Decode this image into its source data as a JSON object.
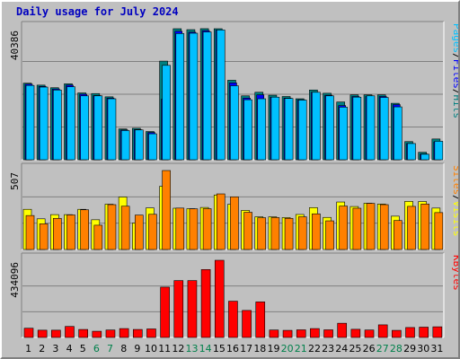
{
  "title": "Daily usage for July 2024",
  "colors": {
    "background": "#c0c0c0",
    "plot_bg": "#c0c0c0",
    "gridline": "#808080",
    "title": "#0000c0",
    "hits": "#008080",
    "files": "#0000ff",
    "pages": "#00c0ff",
    "visits": "#ffff00",
    "sites": "#ff8000",
    "kbytes": "#ff0000",
    "weekend_label": "#00804b",
    "weekday_label": "#000000"
  },
  "chart_data": [
    {
      "type": "bar",
      "panel": "pages-files-hits",
      "ylabel_parts": [
        "Pages",
        "/",
        "Files",
        "/",
        "Hits"
      ],
      "ylabel_colors": [
        "#00c0ff",
        "#000000",
        "#0000ff",
        "#000000",
        "#008080"
      ],
      "max_label": "40386",
      "ylim": [
        0,
        40386
      ],
      "series": [
        {
          "name": "Hits",
          "color": "#008080",
          "values": [
            23600,
            23000,
            22200,
            23400,
            20600,
            20400,
            19400,
            9500,
            9700,
            8700,
            30400,
            40386,
            40100,
            40400,
            40386,
            24500,
            19700,
            20800,
            19900,
            19500,
            18800,
            21500,
            20500,
            17800,
            20000,
            20000,
            20000,
            17400,
            5600,
            2300,
            6400
          ]
        },
        {
          "name": "Files",
          "color": "#0000ff",
          "values": [
            23300,
            22600,
            21800,
            23000,
            20200,
            19800,
            19000,
            9200,
            9300,
            8400,
            18700,
            39600,
            39300,
            39800,
            40000,
            23700,
            19000,
            20000,
            19300,
            19000,
            18500,
            20800,
            19900,
            16700,
            19500,
            19500,
            19500,
            17000,
            5000,
            1800,
            5500
          ]
        },
        {
          "name": "Pages",
          "color": "#00c0ff",
          "values": [
            22900,
            22400,
            21500,
            22500,
            19700,
            19700,
            18800,
            9000,
            9200,
            8000,
            29100,
            38900,
            39000,
            39400,
            40000,
            22800,
            18500,
            18800,
            19300,
            18900,
            18400,
            20800,
            19700,
            16200,
            19300,
            19700,
            19200,
            16300,
            5000,
            1700,
            5700
          ]
        }
      ]
    },
    {
      "type": "bar",
      "panel": "sites-visits",
      "ylabel_parts": [
        "Sites",
        "/",
        "Visits"
      ],
      "ylabel_colors": [
        "#ff8000",
        "#000000",
        "#ffff00"
      ],
      "max_label": "507",
      "ylim": [
        0,
        507
      ],
      "series": [
        {
          "name": "Visits",
          "color": "#ffff00",
          "values": [
            258,
            197,
            224,
            224,
            258,
            191,
            291,
            337,
            170,
            267,
            406,
            265,
            262,
            270,
            350,
            290,
            251,
            210,
            210,
            205,
            225,
            269,
            206,
            305,
            276,
            297,
            292,
            214,
            309,
            308,
            266
          ]
        },
        {
          "name": "Sites",
          "color": "#ff8000",
          "values": [
            218,
            165,
            200,
            222,
            255,
            156,
            288,
            278,
            221,
            226,
            507,
            266,
            261,
            262,
            357,
            338,
            239,
            204,
            205,
            200,
            210,
            229,
            184,
            279,
            265,
            296,
            288,
            186,
            277,
            292,
            237
          ]
        }
      ]
    },
    {
      "type": "bar",
      "panel": "kbytes",
      "ylabel_parts": [
        "KBytes"
      ],
      "ylabel_colors": [
        "#ff0000"
      ],
      "max_label": "434096",
      "ylim": [
        0,
        434096
      ],
      "series": [
        {
          "name": "KBytes",
          "color": "#ff0000",
          "values": [
            52000,
            41000,
            41000,
            62000,
            45000,
            35000,
            42000,
            50000,
            45000,
            48000,
            283000,
            320000,
            320000,
            382000,
            434096,
            204000,
            152000,
            200000,
            42000,
            40000,
            43000,
            50000,
            43000,
            80000,
            46000,
            42000,
            71000,
            40000,
            56000,
            58000,
            60000
          ]
        }
      ]
    }
  ],
  "x_labels": [
    {
      "label": "1",
      "weekend": false
    },
    {
      "label": "2",
      "weekend": false
    },
    {
      "label": "3",
      "weekend": false
    },
    {
      "label": "4",
      "weekend": false
    },
    {
      "label": "5",
      "weekend": false
    },
    {
      "label": "6",
      "weekend": true
    },
    {
      "label": "7",
      "weekend": true
    },
    {
      "label": "8",
      "weekend": false
    },
    {
      "label": "9",
      "weekend": false
    },
    {
      "label": "10",
      "weekend": false
    },
    {
      "label": "11",
      "weekend": false
    },
    {
      "label": "12",
      "weekend": false
    },
    {
      "label": "13",
      "weekend": true
    },
    {
      "label": "14",
      "weekend": true
    },
    {
      "label": "15",
      "weekend": false
    },
    {
      "label": "16",
      "weekend": false
    },
    {
      "label": "17",
      "weekend": false
    },
    {
      "label": "18",
      "weekend": false
    },
    {
      "label": "19",
      "weekend": false
    },
    {
      "label": "20",
      "weekend": true
    },
    {
      "label": "21",
      "weekend": true
    },
    {
      "label": "22",
      "weekend": false
    },
    {
      "label": "23",
      "weekend": false
    },
    {
      "label": "24",
      "weekend": false
    },
    {
      "label": "25",
      "weekend": false
    },
    {
      "label": "26",
      "weekend": false
    },
    {
      "label": "27",
      "weekend": true
    },
    {
      "label": "28",
      "weekend": true
    },
    {
      "label": "29",
      "weekend": false
    },
    {
      "label": "30",
      "weekend": false
    },
    {
      "label": "31",
      "weekend": false
    }
  ]
}
